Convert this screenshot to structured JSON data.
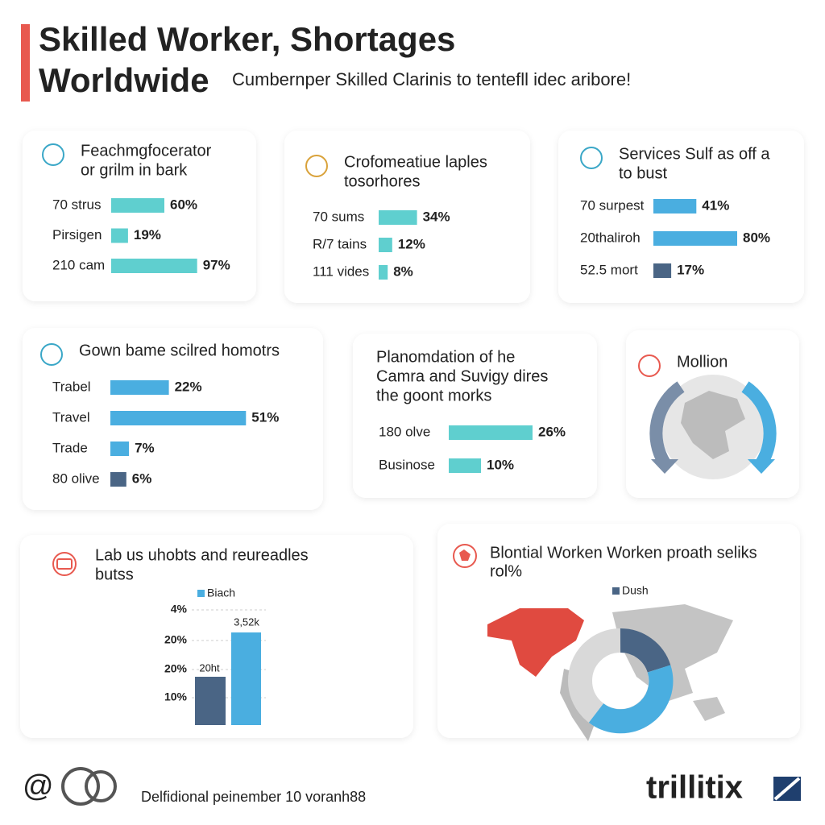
{
  "header": {
    "title": [
      "Skilled Worker, Shortages",
      "Worldwide"
    ],
    "subtitle": "Cumbernper Skilled Clarinis to tentefll idec aribore!"
  },
  "cards": [
    {
      "title": [
        "Feachmgfocerator",
        "or grilm in bark"
      ],
      "rows": [
        {
          "label": "70 strus",
          "value": 60,
          "value_label": "60%",
          "color": "#5fcfcf"
        },
        {
          "label": "Pirsigen",
          "value": 19,
          "value_label": "19%",
          "color": "#5fcfcf"
        },
        {
          "label": "210 cam",
          "value": 97,
          "value_label": "97%",
          "color": "#5fcfcf"
        }
      ]
    },
    {
      "title": [
        "Crofomeatiue laples",
        "tosorhores"
      ],
      "rows": [
        {
          "label": "70 sums",
          "value": 34,
          "value_label": "34%",
          "color": "#5fcfcf"
        },
        {
          "label": "R/7 tains",
          "value": 12,
          "value_label": "12%",
          "color": "#5fcfcf"
        },
        {
          "label": "111 vides",
          "value": 8,
          "value_label": "8%",
          "color": "#5fcfcf"
        }
      ]
    },
    {
      "title": [
        "Services Sulf as off a",
        "to bust"
      ],
      "rows": [
        {
          "label": "70 surpest",
          "value": 41,
          "value_label": "41%",
          "color": "#4aaee0"
        },
        {
          "label": "20thaliroh",
          "value": 80,
          "value_label": "80%",
          "color": "#4aaee0"
        },
        {
          "label": "52.5 mort",
          "value": 17,
          "value_label": "17%",
          "color": "#4a6585"
        }
      ]
    },
    {
      "title": [
        "Gown bame scilred homotrs"
      ],
      "rows": [
        {
          "label": "Trabel",
          "value": 22,
          "value_label": "22%",
          "color": "#4aaee0"
        },
        {
          "label": "Travel",
          "value": 51,
          "value_label": "51%",
          "color": "#4aaee0"
        },
        {
          "label": "Trade",
          "value": 7,
          "value_label": "7%",
          "color": "#4aaee0"
        },
        {
          "label": "80 olive",
          "value": 6,
          "value_label": "6%",
          "color": "#4a6585"
        }
      ]
    },
    {
      "title": [
        "Planomdation of he",
        "Camra and Suvigy dires",
        "the goont morks"
      ],
      "rows": [
        {
          "label": "180 olve",
          "value": 26,
          "value_label": "26%",
          "color": "#5fcfcf"
        },
        {
          "label": "Businose",
          "value": 10,
          "value_label": "10%",
          "color": "#5fcfcf"
        }
      ]
    },
    {
      "title": [
        "Mollion"
      ],
      "rows": []
    }
  ],
  "column_card": {
    "title": [
      "Lab us uhobts and reureadles",
      "butss"
    ],
    "legend": "Biach",
    "axis_labels": [
      "4%",
      "20%",
      "20%",
      "10%"
    ],
    "bar_labels": [
      "20ht",
      "3,52k"
    ]
  },
  "map_card": {
    "title": [
      "Blontial Worken Worken proath seliks",
      "rol%"
    ],
    "legend": "Dush"
  },
  "footer": {
    "note": "Delfidional peinember 10 voranh88",
    "brand": "trillitix"
  }
}
